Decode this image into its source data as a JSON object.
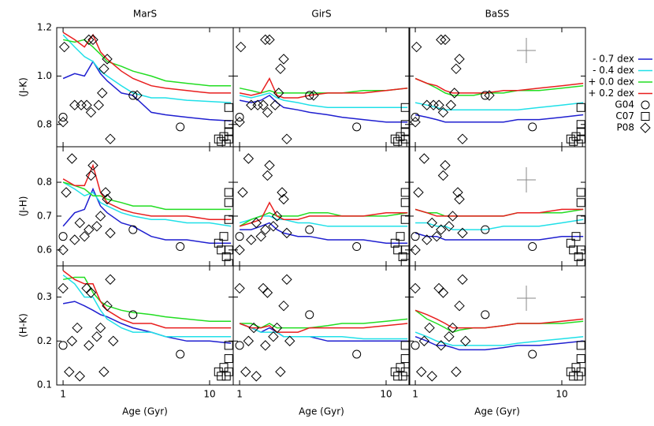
{
  "chart_data": {
    "type": "line",
    "log_x": true,
    "x_label": "Age (Gyr)",
    "xlim": [
      0.905,
      14.5
    ],
    "xticks": [
      1,
      10
    ],
    "x": [
      1,
      1.2,
      1.4,
      1.6,
      1.8,
      2,
      2.5,
      3,
      4,
      5,
      7,
      10,
      14
    ],
    "columns": [
      "MarS",
      "GirS",
      "BaSS"
    ],
    "series": [
      {
        "name": "- 0.7 dex",
        "color": "#1f1fd0"
      },
      {
        "name": "- 0.4 dex",
        "color": "#20e0e8"
      },
      {
        "name": "+ 0.0 dex",
        "color": "#22dd22"
      },
      {
        "name": "+ 0.2 dex",
        "color": "#e81e1e"
      }
    ],
    "observations": [
      {
        "name": "G04",
        "marker": "circle"
      },
      {
        "name": "C07",
        "marker": "square"
      },
      {
        "name": "P08",
        "marker": "diamond"
      }
    ],
    "rows": [
      {
        "y_label": "(J-K)",
        "ylim": [
          0.708,
          1.2
        ],
        "yticks": [
          0.8,
          {
            "value": 1.0,
            "label": "1.0"
          },
          1.2
        ],
        "lines": [
          [
            [
              0.99,
              1.01,
              1.0,
              1.06,
              1.01,
              0.98,
              0.93,
              0.92,
              0.85,
              0.84,
              0.83,
              0.82,
              0.815
            ],
            [
              1.17,
              1.12,
              1.08,
              1.06,
              1.02,
              1.0,
              0.96,
              0.93,
              0.91,
              0.91,
              0.9,
              0.895,
              0.89
            ],
            [
              1.15,
              1.14,
              1.15,
              1.12,
              1.09,
              1.06,
              1.04,
              1.02,
              1.0,
              0.98,
              0.97,
              0.96,
              0.96
            ],
            [
              1.18,
              1.15,
              1.12,
              1.17,
              1.1,
              1.07,
              1.02,
              0.99,
              0.96,
              0.95,
              0.94,
              0.93,
              0.93
            ]
          ],
          [
            [
              0.9,
              0.89,
              0.9,
              0.92,
              0.89,
              0.87,
              0.86,
              0.85,
              0.84,
              0.83,
              0.82,
              0.81,
              0.81
            ],
            [
              0.92,
              0.91,
              0.92,
              0.93,
              0.91,
              0.9,
              0.89,
              0.88,
              0.87,
              0.87,
              0.87,
              0.87,
              0.87
            ],
            [
              0.95,
              0.94,
              0.93,
              0.94,
              0.93,
              0.93,
              0.93,
              0.93,
              0.93,
              0.93,
              0.94,
              0.94,
              0.95
            ],
            [
              0.93,
              0.92,
              0.93,
              0.99,
              0.92,
              0.91,
              0.91,
              0.92,
              0.93,
              0.93,
              0.93,
              0.94,
              0.95
            ]
          ],
          [
            [
              0.84,
              0.83,
              0.82,
              0.81,
              0.81,
              0.81,
              0.81,
              0.81,
              0.81,
              0.82,
              0.82,
              0.83,
              0.84
            ],
            [
              0.89,
              0.88,
              0.87,
              0.86,
              0.86,
              0.86,
              0.86,
              0.86,
              0.86,
              0.86,
              0.87,
              0.88,
              0.89
            ],
            [
              0.99,
              0.97,
              0.95,
              0.93,
              0.92,
              0.92,
              0.92,
              0.93,
              0.93,
              0.94,
              0.94,
              0.95,
              0.96
            ],
            [
              0.99,
              0.97,
              0.96,
              0.94,
              0.93,
              0.93,
              0.93,
              0.93,
              0.94,
              0.94,
              0.95,
              0.96,
              0.97
            ]
          ]
        ],
        "obs": [
          {
            "x": [
              1.0,
              3.0,
              6.3
            ],
            "values": [
              0.83,
              0.92,
              0.79
            ]
          },
          {
            "x": [
              13.5,
              13.5,
              13.5,
              12.5,
              11.5,
              12,
              13,
              13.5
            ],
            "values": [
              0.87,
              0.8,
              0.77,
              0.75,
              0.74,
              0.73,
              0.72,
              0.74
            ]
          },
          {
            "x": [
              1.02,
              1.0,
              1.2,
              1.33,
              1.45,
              1.55,
              1.6,
              1.5,
              1.75,
              1.85,
              1.9,
              2.0,
              2.1,
              3.2
            ],
            "values": [
              1.12,
              0.81,
              0.88,
              0.88,
              0.88,
              0.85,
              1.15,
              1.15,
              0.88,
              0.93,
              1.03,
              1.07,
              0.74,
              0.92
            ]
          }
        ]
      },
      {
        "y_label": "(J-H)",
        "ylim": [
          0.553,
          0.905
        ],
        "yticks": [
          0.6,
          0.7,
          0.8
        ],
        "lines": [
          [
            [
              0.67,
              0.71,
              0.72,
              0.78,
              0.73,
              0.71,
              0.68,
              0.67,
              0.64,
              0.63,
              0.63,
              0.62,
              0.62
            ],
            [
              0.8,
              0.78,
              0.76,
              0.77,
              0.74,
              0.73,
              0.71,
              0.7,
              0.69,
              0.69,
              0.68,
              0.68,
              0.67
            ],
            [
              0.8,
              0.79,
              0.78,
              0.76,
              0.76,
              0.75,
              0.74,
              0.73,
              0.73,
              0.72,
              0.72,
              0.72,
              0.72
            ],
            [
              0.81,
              0.79,
              0.79,
              0.85,
              0.77,
              0.74,
              0.72,
              0.71,
              0.7,
              0.7,
              0.7,
              0.69,
              0.69
            ]
          ],
          [
            [
              0.66,
              0.66,
              0.67,
              0.68,
              0.66,
              0.65,
              0.64,
              0.64,
              0.63,
              0.63,
              0.63,
              0.62,
              0.62
            ],
            [
              0.68,
              0.69,
              0.7,
              0.7,
              0.69,
              0.69,
              0.68,
              0.68,
              0.67,
              0.67,
              0.67,
              0.67,
              0.67
            ],
            [
              0.67,
              0.69,
              0.7,
              0.71,
              0.7,
              0.7,
              0.7,
              0.71,
              0.71,
              0.7,
              0.7,
              0.7,
              0.71
            ],
            [
              0.67,
              0.68,
              0.69,
              0.74,
              0.7,
              0.69,
              0.69,
              0.7,
              0.7,
              0.7,
              0.7,
              0.71,
              0.71
            ]
          ],
          [
            [
              0.65,
              0.64,
              0.64,
              0.63,
              0.63,
              0.63,
              0.63,
              0.63,
              0.63,
              0.63,
              0.63,
              0.64,
              0.64
            ],
            [
              0.68,
              0.68,
              0.67,
              0.67,
              0.66,
              0.66,
              0.66,
              0.66,
              0.67,
              0.67,
              0.67,
              0.68,
              0.69
            ],
            [
              0.72,
              0.71,
              0.71,
              0.7,
              0.7,
              0.7,
              0.7,
              0.7,
              0.7,
              0.71,
              0.71,
              0.71,
              0.72
            ],
            [
              0.72,
              0.71,
              0.7,
              0.7,
              0.7,
              0.7,
              0.7,
              0.7,
              0.7,
              0.71,
              0.71,
              0.72,
              0.72
            ]
          ]
        ],
        "obs": [
          {
            "x": [
              1.0,
              3.0,
              6.3
            ],
            "values": [
              0.64,
              0.66,
              0.61
            ]
          },
          {
            "x": [
              13.5,
              13.5,
              13.5,
              12.5,
              11.5,
              12,
              13,
              13.5,
              13.5
            ],
            "values": [
              0.77,
              0.74,
              0.69,
              0.64,
              0.62,
              0.6,
              0.58,
              0.6,
              0.56
            ]
          },
          {
            "x": [
              1.0,
              1.05,
              1.15,
              1.2,
              1.3,
              1.4,
              1.5,
              1.55,
              1.6,
              1.7,
              1.8,
              1.95,
              2.0,
              2.1
            ],
            "values": [
              0.6,
              0.77,
              0.87,
              0.63,
              0.68,
              0.64,
              0.66,
              0.82,
              0.85,
              0.67,
              0.7,
              0.77,
              0.75,
              0.65
            ]
          }
        ]
      },
      {
        "y_label": "(H-K)",
        "ylim": [
          0.1,
          0.371
        ],
        "yticks": [
          0.1,
          0.2,
          0.3
        ],
        "lines": [
          [
            [
              0.285,
              0.29,
              0.28,
              0.27,
              0.26,
              0.255,
              0.24,
              0.23,
              0.22,
              0.21,
              0.2,
              0.2,
              0.195
            ],
            [
              0.35,
              0.33,
              0.3,
              0.3,
              0.27,
              0.25,
              0.23,
              0.22,
              0.22,
              0.21,
              0.21,
              0.21,
              0.21
            ],
            [
              0.34,
              0.345,
              0.345,
              0.31,
              0.29,
              0.28,
              0.27,
              0.265,
              0.26,
              0.255,
              0.25,
              0.245,
              0.245
            ],
            [
              0.36,
              0.34,
              0.33,
              0.33,
              0.29,
              0.27,
              0.25,
              0.24,
              0.24,
              0.23,
              0.23,
              0.23,
              0.23
            ]
          ],
          [
            [
              0.24,
              0.23,
              0.22,
              0.23,
              0.22,
              0.21,
              0.21,
              0.21,
              0.2,
              0.2,
              0.2,
              0.2,
              0.2
            ],
            [
              0.24,
              0.23,
              0.22,
              0.22,
              0.22,
              0.21,
              0.21,
              0.21,
              0.21,
              0.21,
              0.205,
              0.205,
              0.205
            ],
            [
              0.24,
              0.24,
              0.23,
              0.24,
              0.23,
              0.23,
              0.23,
              0.23,
              0.235,
              0.24,
              0.24,
              0.245,
              0.25
            ],
            [
              0.24,
              0.23,
              0.23,
              0.235,
              0.22,
              0.22,
              0.22,
              0.23,
              0.23,
              0.23,
              0.23,
              0.235,
              0.24
            ]
          ],
          [
            [
              0.21,
              0.2,
              0.19,
              0.19,
              0.185,
              0.18,
              0.18,
              0.18,
              0.185,
              0.19,
              0.19,
              0.195,
              0.2
            ],
            [
              0.22,
              0.21,
              0.2,
              0.195,
              0.19,
              0.19,
              0.19,
              0.19,
              0.19,
              0.195,
              0.2,
              0.205,
              0.21
            ],
            [
              0.27,
              0.25,
              0.24,
              0.23,
              0.22,
              0.225,
              0.23,
              0.23,
              0.235,
              0.24,
              0.24,
              0.24,
              0.245
            ],
            [
              0.27,
              0.26,
              0.25,
              0.24,
              0.23,
              0.23,
              0.23,
              0.23,
              0.235,
              0.24,
              0.24,
              0.245,
              0.25
            ]
          ]
        ],
        "obs": [
          {
            "x": [
              1.0,
              3.0,
              6.3
            ],
            "values": [
              0.19,
              0.26,
              0.17
            ]
          },
          {
            "x": [
              13.5,
              13.5,
              12.5,
              11.5,
              12,
              13,
              13.5
            ],
            "values": [
              0.19,
              0.16,
              0.14,
              0.13,
              0.12,
              0.12,
              0.13
            ]
          },
          {
            "x": [
              1.0,
              1.1,
              1.15,
              1.25,
              1.3,
              1.45,
              1.5,
              1.55,
              1.7,
              1.8,
              1.9,
              2.0,
              2.1,
              2.2
            ],
            "values": [
              0.32,
              0.13,
              0.2,
              0.23,
              0.12,
              0.32,
              0.19,
              0.31,
              0.21,
              0.23,
              0.13,
              0.28,
              0.34,
              0.2
            ]
          }
        ]
      }
    ]
  }
}
